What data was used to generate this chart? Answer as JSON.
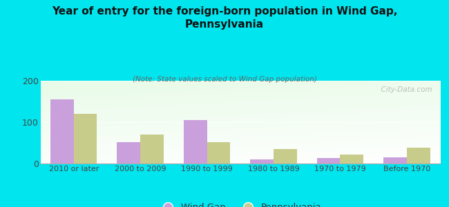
{
  "title": "Year of entry for the foreign-born population in Wind Gap,\nPennsylvania",
  "subtitle": "(Note: State values scaled to Wind Gap population)",
  "categories": [
    "2010 or later",
    "2000 to 2009",
    "1990 to 1999",
    "1980 to 1989",
    "1970 to 1979",
    "Before 1970"
  ],
  "wind_gap_values": [
    155,
    52,
    105,
    10,
    13,
    15
  ],
  "pennsylvania_values": [
    120,
    70,
    52,
    35,
    22,
    38
  ],
  "wind_gap_color": "#c9a0dc",
  "pennsylvania_color": "#c8cc8a",
  "background_outer": "#00e5ee",
  "ylim": [
    0,
    200
  ],
  "yticks": [
    0,
    100,
    200
  ],
  "bar_width": 0.35,
  "watermark": "  City-Data.com",
  "legend_wind_gap": "Wind Gap",
  "legend_pennsylvania": "Pennsylvania"
}
